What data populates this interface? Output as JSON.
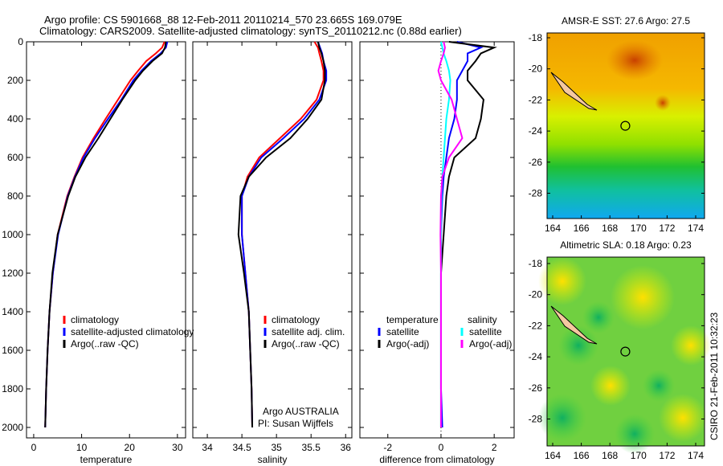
{
  "title_line1": "Argo profile: CS 5901668_88 12-Feb-2011 20110214_570 23.665S 169.079E",
  "title_line2": "Climatology: CARS2009. Satellite-adjusted climatology: synTS_20110212.nc (0.88d earlier)",
  "side_label": "CSIRO 21-Feb-2011 10:32:23",
  "colors": {
    "climatology": "#ff0000",
    "satellite": "#0000ff",
    "argo": "#000000",
    "sal_sat": "#00ffff",
    "sal_argo": "#ff00ff"
  },
  "chart_data": [
    {
      "type": "line",
      "xlabel": "temperature",
      "ylabel": "",
      "xlim": [
        -1.5,
        31.7
      ],
      "ylim": [
        2000,
        0
      ],
      "xticks": [
        0,
        10,
        20,
        30
      ],
      "yticks": [
        0,
        200,
        400,
        600,
        800,
        1000,
        1200,
        1400,
        1600,
        1800,
        2000
      ],
      "depth": [
        0,
        30,
        60,
        100,
        150,
        200,
        300,
        400,
        500,
        600,
        700,
        800,
        1000,
        1200,
        1400,
        1600,
        1800,
        2000
      ],
      "series": [
        {
          "name": "climatology",
          "color": "#ff0000",
          "values": [
            27.3,
            26.8,
            25.5,
            23.5,
            21.8,
            20.2,
            17.6,
            15.0,
            12.5,
            10.2,
            8.5,
            7.0,
            5.0,
            4.0,
            3.3,
            2.9,
            2.6,
            2.4
          ]
        },
        {
          "name": "satellite-adjusted climatology",
          "color": "#0000ff",
          "values": [
            27.9,
            27.6,
            26.5,
            24.5,
            22.5,
            20.8,
            18.3,
            15.5,
            12.8,
            10.4,
            8.6,
            7.1,
            5.1,
            4.0,
            3.3,
            2.9,
            2.6,
            2.4
          ]
        },
        {
          "name": "Argo(..raw -QC)",
          "color": "#000000",
          "values": [
            27.6,
            27.4,
            26.8,
            24.8,
            22.8,
            21.2,
            18.5,
            16.0,
            13.5,
            10.8,
            8.7,
            7.2,
            5.0,
            3.9,
            3.3,
            2.9,
            2.6,
            2.4
          ]
        }
      ],
      "legend": [
        "climatology",
        "satellite-adjusted climatology",
        "Argo(..raw -QC)"
      ]
    },
    {
      "type": "line",
      "xlabel": "salinity",
      "xlim": [
        33.79,
        36.09
      ],
      "ylim": [
        2000,
        0
      ],
      "xticks": [
        34,
        34.5,
        35,
        35.5,
        36
      ],
      "depth": [
        0,
        30,
        60,
        100,
        150,
        200,
        300,
        400,
        500,
        600,
        700,
        800,
        1000,
        1200,
        1400,
        1600,
        1800,
        2000
      ],
      "series": [
        {
          "name": "climatology",
          "color": "#ff0000",
          "values": [
            35.55,
            35.6,
            35.62,
            35.65,
            35.68,
            35.68,
            35.58,
            35.35,
            35.05,
            34.75,
            34.58,
            34.5,
            34.5,
            34.55,
            34.6,
            34.62,
            34.64,
            34.65
          ]
        },
        {
          "name": "satellite adj. clim.",
          "color": "#0000ff",
          "values": [
            35.6,
            35.63,
            35.66,
            35.68,
            35.72,
            35.72,
            35.62,
            35.4,
            35.1,
            34.78,
            34.6,
            34.5,
            34.5,
            34.55,
            34.6,
            34.62,
            34.64,
            34.65
          ]
        },
        {
          "name": "Argo(..raw -QC)",
          "color": "#000000",
          "values": [
            35.6,
            35.62,
            35.65,
            35.68,
            35.7,
            35.7,
            35.65,
            35.45,
            35.2,
            34.85,
            34.6,
            34.48,
            34.45,
            34.53,
            34.6,
            34.62,
            34.64,
            34.65
          ]
        }
      ],
      "legend": [
        "climatology",
        "satellite adj. clim.",
        "Argo(..raw -QC)"
      ],
      "annotation": [
        "Argo AUSTRALIA",
        "PI: Susan Wijffels"
      ]
    },
    {
      "type": "line",
      "xlabel": "difference from climatology",
      "xlim": [
        -3.05,
        2.75
      ],
      "ylim": [
        2000,
        0
      ],
      "xticks": [
        -2,
        0,
        2
      ],
      "depth": [
        0,
        30,
        60,
        100,
        150,
        200,
        300,
        400,
        500,
        600,
        700,
        800,
        1000,
        1200,
        1400,
        1600,
        1800,
        2000
      ],
      "series": [
        {
          "name": "temperature satellite",
          "color": "#0000ff",
          "values": [
            0.6,
            1.5,
            1.0,
            1.0,
            0.8,
            0.6,
            0.6,
            0.5,
            0.3,
            0.2,
            0.1,
            0.05,
            0,
            0,
            0,
            0,
            0,
            0.05
          ]
        },
        {
          "name": "temperature Argo(-adj)",
          "color": "#000000",
          "values": [
            0.3,
            2.0,
            1.5,
            1.3,
            1.0,
            1.0,
            1.6,
            1.5,
            1.3,
            0.5,
            0.3,
            0.2,
            0.1,
            0,
            0,
            0,
            0,
            0
          ]
        },
        {
          "name": "salinity satellite",
          "color": "#00ffff",
          "values": [
            0,
            0.05,
            0.1,
            0.2,
            0.3,
            0.35,
            0.3,
            0.2,
            0.15,
            0.1,
            0.05,
            0.02,
            0,
            0,
            0,
            0,
            0,
            0
          ]
        },
        {
          "name": "salinity Argo(-adj)",
          "color": "#ff00ff",
          "values": [
            0.1,
            0.15,
            0.1,
            0.0,
            -0.1,
            0.0,
            0.4,
            0.6,
            0.8,
            0.3,
            0.05,
            0,
            -0.02,
            0,
            0,
            0,
            0,
            0
          ]
        }
      ],
      "legend_headers": [
        "temperature",
        "salinity"
      ],
      "legend": [
        "satellite",
        "Argo(-adj)",
        "satellite",
        "Argo(-adj)"
      ]
    },
    {
      "type": "heatmap",
      "title": "AMSR-E SST: 27.6 Argo: 27.5",
      "xticks": [
        164,
        166,
        168,
        170,
        172,
        174
      ],
      "yticks": [
        -18,
        -20,
        -22,
        -24,
        -26,
        -28
      ]
    },
    {
      "type": "heatmap",
      "title": "Altimetric SLA: 0.18 Argo: 0.23",
      "xticks": [
        164,
        166,
        168,
        170,
        172,
        174
      ],
      "yticks": [
        -18,
        -20,
        -22,
        -24,
        -26,
        -28
      ]
    }
  ]
}
